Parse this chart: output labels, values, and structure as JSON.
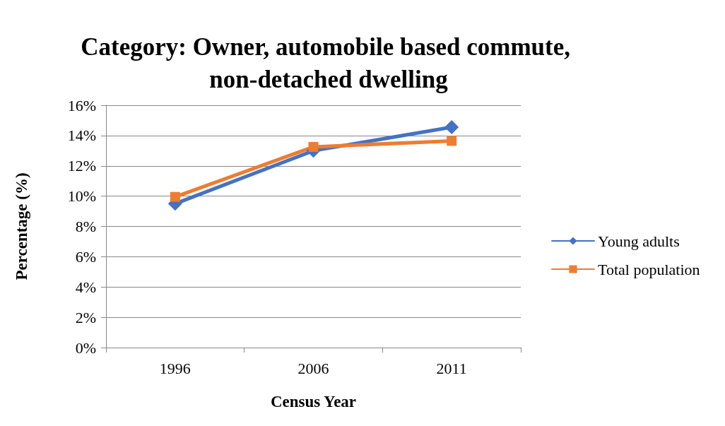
{
  "chart_data": {
    "type": "line",
    "title": "Category: Owner, automobile based commute, non-detached dwelling",
    "xlabel": "Census Year",
    "ylabel": "Percentage (%)",
    "categories": [
      "1996",
      "2006",
      "2011"
    ],
    "series": [
      {
        "name": "Young adults",
        "color": "#4472c4",
        "marker": "diamond",
        "values": [
          9.5,
          13.0,
          14.55
        ]
      },
      {
        "name": "Total population",
        "color": "#ed7d31",
        "marker": "square",
        "values": [
          9.95,
          13.25,
          13.65
        ]
      }
    ],
    "ylim": [
      0,
      16
    ],
    "yticks": [
      {
        "value": 0,
        "label": "0%"
      },
      {
        "value": 2,
        "label": "2%"
      },
      {
        "value": 4,
        "label": "4%"
      },
      {
        "value": 6,
        "label": "6%"
      },
      {
        "value": 8,
        "label": "8%"
      },
      {
        "value": 10,
        "label": "10%"
      },
      {
        "value": 12,
        "label": "12%"
      },
      {
        "value": 14,
        "label": "14%"
      },
      {
        "value": 16,
        "label": "16%"
      }
    ],
    "grid": "y",
    "legend": "right",
    "line_style": "solid"
  }
}
